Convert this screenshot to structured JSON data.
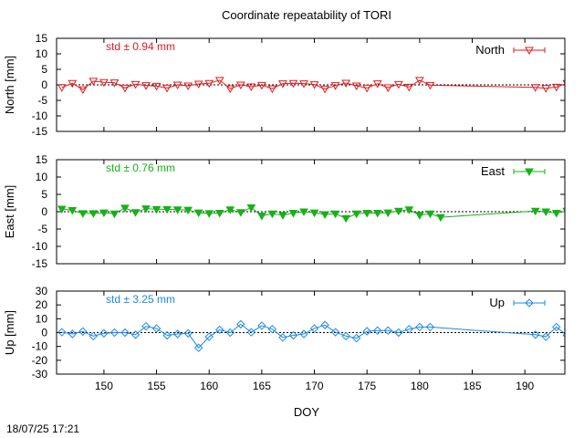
{
  "title": "Coordinate repeatability of TORI",
  "timestamp": "18/07/25 17:21",
  "chart_data": {
    "type": "line",
    "title": "Coordinate repeatability of TORI",
    "xlabel": "DOY",
    "xlim": [
      145.5,
      193.8
    ],
    "xticks": [
      150,
      155,
      160,
      165,
      170,
      175,
      180,
      185,
      190
    ],
    "x": [
      146,
      147,
      148,
      149,
      150,
      151,
      152,
      153,
      154,
      155,
      156,
      157,
      158,
      159,
      160,
      161,
      162,
      163,
      164,
      165,
      166,
      167,
      168,
      169,
      170,
      171,
      172,
      173,
      174,
      175,
      176,
      177,
      178,
      179,
      180,
      181,
      182,
      191,
      192,
      193,
      194
    ],
    "series": [
      {
        "name": "North",
        "ylabel": "North [mm]",
        "std": "std ± 0.94 mm",
        "color": "#e41a1c",
        "marker": "triangle-down-open",
        "ylim": [
          -15,
          15
        ],
        "yticks": [
          15,
          10,
          5,
          0,
          -5,
          -10,
          -15
        ],
        "values": [
          -0.8,
          0.5,
          -1.5,
          1.2,
          0.8,
          0.7,
          -1.0,
          0.2,
          -0.2,
          -0.4,
          -1.0,
          0.0,
          -0.3,
          0.3,
          0.5,
          1.5,
          -1.2,
          0.0,
          -0.6,
          -0.1,
          -1.2,
          0.4,
          0.5,
          0.4,
          0.1,
          -1.3,
          -0.2,
          0.6,
          -0.3,
          -1.0,
          0.4,
          -0.9,
          0.2,
          -0.7,
          1.5,
          -0.1,
          null,
          -0.8,
          -1.1,
          -0.7,
          0.5
        ]
      },
      {
        "name": "East",
        "ylabel": "East [mm]",
        "std": "std ± 0.76 mm",
        "color": "#17b117",
        "marker": "triangle-down-filled",
        "ylim": [
          -15,
          15
        ],
        "yticks": [
          15,
          10,
          5,
          0,
          -5,
          -10,
          -15
        ],
        "values": [
          0.8,
          0.4,
          -0.5,
          -0.5,
          -0.3,
          -0.6,
          1.1,
          -0.2,
          0.9,
          0.7,
          0.7,
          0.6,
          0.5,
          -0.3,
          -0.5,
          -0.4,
          0.6,
          -0.2,
          1.2,
          -1.2,
          -0.6,
          -1.0,
          -0.4,
          0.0,
          -0.3,
          -0.8,
          -0.6,
          -1.9,
          -0.6,
          -0.4,
          -0.4,
          -0.3,
          0.2,
          0.6,
          -1.0,
          -0.6,
          -1.6,
          0.2,
          0.0,
          -0.4,
          0.2
        ]
      },
      {
        "name": "Up",
        "ylabel": "Up [mm]",
        "std": "std ± 3.25 mm",
        "color": "#1e88e5",
        "marker": "diamond-open",
        "ylim": [
          -30,
          30
        ],
        "yticks": [
          30,
          20,
          10,
          0,
          -10,
          -20,
          -30
        ],
        "values": [
          0.3,
          -1.0,
          0.8,
          -2.5,
          -0.5,
          0.0,
          0.0,
          -1.5,
          4.5,
          3.0,
          -2.0,
          -1.0,
          -0.5,
          -11.0,
          -3.0,
          2.0,
          0.0,
          6.0,
          0.3,
          5.0,
          2.5,
          -3.5,
          -2.0,
          -1.0,
          3.0,
          5.5,
          0.3,
          -2.5,
          -4.0,
          1.0,
          1.5,
          1.5,
          0.0,
          2.5,
          4.0,
          4.0,
          null,
          -1.5,
          -3.0,
          4.0,
          -2.0
        ]
      }
    ]
  }
}
